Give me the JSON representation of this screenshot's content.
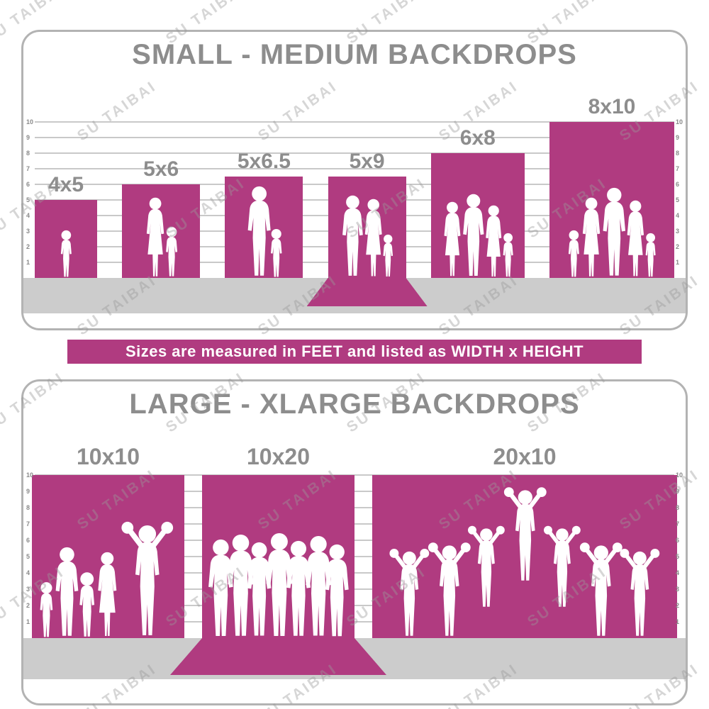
{
  "watermark": {
    "text": "SU TAIBAI"
  },
  "banner": {
    "text": "Sizes are measured in FEET and listed as WIDTH x HEIGHT"
  },
  "colors": {
    "magenta": "#b03b80",
    "floor_gray": "#cccccc",
    "title_gray": "#8d8d8d",
    "border_gray": "#b3b3b3",
    "ruler_line_gray": "#c9c9c9",
    "tick_gray": "#8a8a8a",
    "figure_white": "#ffffff",
    "banner_text": "#ffffff"
  },
  "chart_data": [
    {
      "type": "bar",
      "title": "SMALL - MEDIUM BACKDROPS",
      "units": "feet",
      "ylim": [
        0,
        10
      ],
      "tick_labels": [
        "1",
        "2",
        "3",
        "4",
        "5",
        "6",
        "7",
        "8",
        "9",
        "10"
      ],
      "bars": [
        {
          "label": "4x5",
          "width_ft": 4,
          "height_ft": 5,
          "wall_height_ft": 5,
          "floor_sweep": false,
          "figures": [
            {
              "type": "child",
              "height_ft": 3.1
            }
          ]
        },
        {
          "label": "5x6",
          "width_ft": 5,
          "height_ft": 6,
          "wall_height_ft": 6,
          "floor_sweep": false,
          "figures": [
            {
              "type": "woman",
              "height_ft": 5.2
            },
            {
              "type": "child",
              "height_ft": 3.3
            }
          ]
        },
        {
          "label": "5x6.5",
          "width_ft": 5,
          "height_ft": 6.5,
          "wall_height_ft": 6.5,
          "floor_sweep": false,
          "figures": [
            {
              "type": "man",
              "height_ft": 5.9
            },
            {
              "type": "child",
              "height_ft": 3.2
            }
          ]
        },
        {
          "label": "5x9",
          "width_ft": 5,
          "height_ft": 9,
          "wall_height_ft": 6.5,
          "floor_sweep": true,
          "figures": [
            {
              "type": "man",
              "height_ft": 5.3
            },
            {
              "type": "woman",
              "height_ft": 5.1
            },
            {
              "type": "child",
              "height_ft": 2.8
            }
          ]
        },
        {
          "label": "6x8",
          "width_ft": 6,
          "height_ft": 8,
          "wall_height_ft": 8,
          "floor_sweep": false,
          "figures": [
            {
              "type": "woman",
              "height_ft": 4.9
            },
            {
              "type": "man",
              "height_ft": 5.4
            },
            {
              "type": "woman",
              "height_ft": 4.7
            },
            {
              "type": "child",
              "height_ft": 2.9
            }
          ]
        },
        {
          "label": "8x10",
          "width_ft": 8,
          "height_ft": 10,
          "wall_height_ft": 10,
          "floor_sweep": false,
          "figures": [
            {
              "type": "child",
              "height_ft": 3.1
            },
            {
              "type": "woman",
              "height_ft": 5.2
            },
            {
              "type": "man",
              "height_ft": 5.8
            },
            {
              "type": "woman",
              "height_ft": 5.0
            },
            {
              "type": "child",
              "height_ft": 2.9
            }
          ]
        }
      ]
    },
    {
      "type": "bar",
      "title": "LARGE - XLARGE BACKDROPS",
      "units": "feet",
      "ylim": [
        0,
        10
      ],
      "tick_labels": [
        "1",
        "2",
        "3",
        "4",
        "5",
        "6",
        "7",
        "8",
        "9",
        "10"
      ],
      "bars": [
        {
          "label": "10x10",
          "width_ft": 10,
          "height_ft": 10,
          "wall_height_ft": 10,
          "floor_sweep": false,
          "figures": [
            {
              "type": "child",
              "height_ft": 3.5
            },
            {
              "type": "man",
              "height_ft": 5.6
            },
            {
              "type": "child",
              "height_ft": 4.1
            },
            {
              "type": "woman",
              "height_ft": 5.3
            },
            {
              "type": "cheer",
              "height_ft": 7.3
            }
          ]
        },
        {
          "label": "10x20",
          "width_ft": 10,
          "height_ft": 20,
          "wall_height_ft": 10,
          "floor_sweep": true,
          "figures": [
            {
              "type": "man",
              "height_ft": 6.1
            },
            {
              "type": "man",
              "height_ft": 6.4
            },
            {
              "type": "man",
              "height_ft": 5.9
            },
            {
              "type": "man",
              "height_ft": 6.5
            },
            {
              "type": "man",
              "height_ft": 6.0
            },
            {
              "type": "man",
              "height_ft": 6.3
            },
            {
              "type": "man",
              "height_ft": 5.8
            }
          ]
        },
        {
          "label": "20x10",
          "width_ft": 20,
          "height_ft": 10,
          "wall_height_ft": 10,
          "floor_sweep": false,
          "figures": [
            {
              "type": "cheer",
              "height_ft": 5.6
            },
            {
              "type": "cheer",
              "height_ft": 6.0
            },
            {
              "type": "cheer",
              "height_ft": 5.2,
              "raise_ft": 1.8
            },
            {
              "type": "cheer",
              "height_ft": 6.0,
              "raise_ft": 3.4
            },
            {
              "type": "cheer",
              "height_ft": 5.2,
              "raise_ft": 1.8
            },
            {
              "type": "cheer",
              "height_ft": 6.0
            },
            {
              "type": "cheer",
              "height_ft": 5.6
            }
          ]
        }
      ]
    }
  ]
}
